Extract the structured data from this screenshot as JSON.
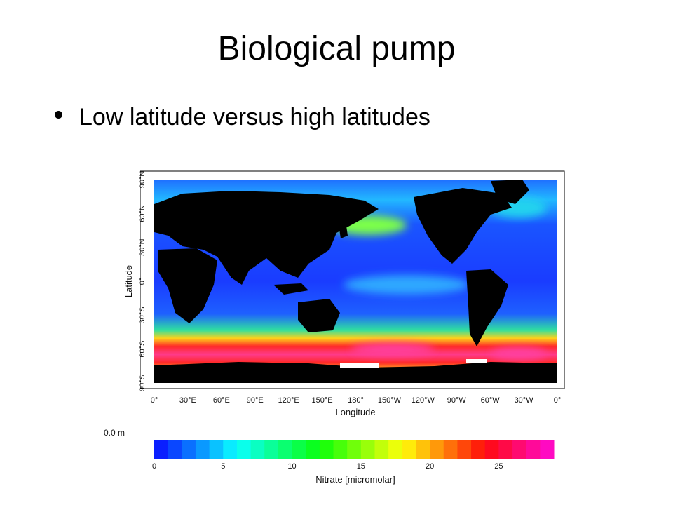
{
  "slide": {
    "title": "Biological pump",
    "bullet": "Low latitude versus high latitudes"
  },
  "figure": {
    "depth_label": "0.0 m",
    "axes": {
      "ylabel": "Latitude",
      "xlabel": "Longitude",
      "yticks": [
        "90°N",
        "60°N",
        "30°N",
        "0°",
        "30°S",
        "60°S",
        "90°S"
      ],
      "xticks": [
        "0°",
        "30°E",
        "60°E",
        "90°E",
        "120°E",
        "150°E",
        "180°",
        "150°W",
        "120°W",
        "90°W",
        "60°W",
        "30°W",
        "0°"
      ]
    },
    "colorbar": {
      "label": "Nitrate [micromolar]",
      "ticks": [
        "0",
        "5",
        "10",
        "15",
        "20",
        "25"
      ],
      "range": [
        0,
        29
      ],
      "segments": 29
    },
    "colors": {
      "land": "#000000",
      "low_nutrient": "#1a3cff",
      "mid_nutrient": "#22d3ee",
      "high_nutrient": "#ff2030",
      "very_high": "#ff3fa0"
    }
  }
}
